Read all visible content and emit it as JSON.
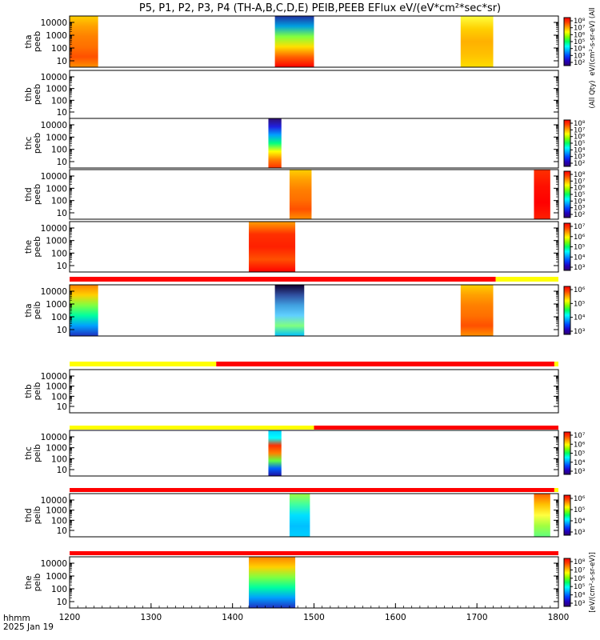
{
  "chart_data": {
    "type": "heatmap",
    "title": "P5, P1, P2, P3, P4 (TH-A,B,C,D,E) PEIB,PEEB EFlux eV/(eV*cm²*sec*sr)",
    "x_caption": "hhmm",
    "date": "2025 Jan 19",
    "xlim": [
      1200,
      1800
    ],
    "x_ticks": [
      "1200",
      "1300",
      "1400",
      "1500",
      "1600",
      "1700",
      "1800"
    ],
    "y_scale": "log",
    "colormap": "rainbow (purple-blue-cyan-green-yellow-red)",
    "colors": {
      "red": "#ff0000",
      "yellow": "#ffff00",
      "background": "#ffffff"
    },
    "panels": [
      {
        "name": "tha peeb",
        "ylabel": [
          "tha",
          "peeb"
        ],
        "y_ticks": [
          "10000",
          "1000",
          "100",
          "10"
        ],
        "cbar_ticks": [
          "10⁸",
          "10⁷",
          "10⁶",
          "10⁵",
          "10⁴",
          "10³",
          "10²"
        ],
        "cbar_label": "eV/(cm²-s-sr-eV) (All",
        "blocks": [
          {
            "t0": 1200,
            "t1": 1235,
            "style": "warm"
          },
          {
            "t0": 1452,
            "t1": 1500,
            "style": "mixed-blue"
          },
          {
            "t0": 1680,
            "t1": 1720,
            "style": "yellow-top"
          }
        ]
      },
      {
        "name": "thb peeb",
        "ylabel": [
          "thb",
          "peeb"
        ],
        "y_ticks": [
          "10000",
          "1000",
          "100",
          "10"
        ],
        "cbar_ticks": [],
        "cbar_label": "(All Qty)",
        "blocks": []
      },
      {
        "name": "thc peeb",
        "ylabel": [
          "thc",
          "peeb"
        ],
        "y_ticks": [
          "10000",
          "1000",
          "100",
          "10"
        ],
        "cbar_ticks": [
          "10⁸",
          "10⁷",
          "10⁶",
          "10⁵",
          "10⁴",
          "10³",
          "10²"
        ],
        "cbar_label": "",
        "blocks": [
          {
            "t0": 1444,
            "t1": 1460,
            "style": "purple-top"
          }
        ]
      },
      {
        "name": "thd peeb",
        "ylabel": [
          "thd",
          "peeb"
        ],
        "y_ticks": [
          "10000",
          "1000",
          "100",
          "10"
        ],
        "cbar_ticks": [
          "10⁸",
          "10⁷",
          "10⁶",
          "10⁵",
          "10⁴",
          "10³",
          "10²"
        ],
        "cbar_label": "",
        "blocks": [
          {
            "t0": 1470,
            "t1": 1497,
            "style": "warm"
          },
          {
            "t0": 1770,
            "t1": 1790,
            "style": "red"
          }
        ]
      },
      {
        "name": "the peeb",
        "ylabel": [
          "the",
          "peeb"
        ],
        "y_ticks": [
          "10000",
          "1000",
          "100",
          "10"
        ],
        "cbar_ticks": [
          "10⁷",
          "10⁶",
          "10⁵",
          "10⁴",
          "10³"
        ],
        "cbar_label": "",
        "blocks": [
          {
            "t0": 1420,
            "t1": 1477,
            "style": "warm-red"
          }
        ]
      },
      {
        "name": "tha peib",
        "ylabel": [
          "tha",
          "peib"
        ],
        "y_ticks": [
          "10000",
          "1000",
          "100",
          "10"
        ],
        "cbar_ticks": [
          "10⁶",
          "10⁵",
          "10⁴",
          "10³"
        ],
        "cbar_label": "",
        "blocks": [
          {
            "t0": 1200,
            "t1": 1235,
            "style": "cool-mix"
          },
          {
            "t0": 1452,
            "t1": 1488,
            "style": "dark-mix"
          },
          {
            "t0": 1680,
            "t1": 1720,
            "style": "warm"
          }
        ]
      },
      {
        "name": "thb peib",
        "ylabel": [
          "thb",
          "peib"
        ],
        "y_ticks": [
          "10000",
          "1000",
          "100",
          "10"
        ],
        "cbar_ticks": [],
        "cbar_label": "",
        "blocks": []
      },
      {
        "name": "thc peib",
        "ylabel": [
          "thc",
          "peib"
        ],
        "y_ticks": [
          "10000",
          "1000",
          "100",
          "10"
        ],
        "cbar_ticks": [
          "10⁷",
          "10⁶",
          "10⁵",
          "10⁴",
          "10³"
        ],
        "cbar_label": "",
        "blocks": [
          {
            "t0": 1444,
            "t1": 1460,
            "style": "cool-top-red"
          }
        ]
      },
      {
        "name": "thd peib",
        "ylabel": [
          "thd",
          "peib"
        ],
        "y_ticks": [
          "10000",
          "1000",
          "100",
          "10"
        ],
        "cbar_ticks": [
          "10⁶",
          "10⁵",
          "10⁴",
          "10³"
        ],
        "cbar_label": "",
        "blocks": [
          {
            "t0": 1470,
            "t1": 1495,
            "style": "cyan"
          },
          {
            "t0": 1770,
            "t1": 1790,
            "style": "warm-green"
          }
        ]
      },
      {
        "name": "the peib",
        "ylabel": [
          "the",
          "peib"
        ],
        "y_ticks": [
          "10000",
          "1000",
          "100",
          "10"
        ],
        "cbar_ticks": [
          "10⁸",
          "10⁷",
          "10⁶",
          "10⁵",
          "10⁴",
          "10³"
        ],
        "cbar_label": "[eV/(cm²-s-sr-eV)]",
        "blocks": [
          {
            "t0": 1420,
            "t1": 1477,
            "style": "cool-mix"
          }
        ]
      }
    ],
    "flag_bars": [
      {
        "after_panel": 4,
        "segments": [
          {
            "t0": 1200,
            "t1": 1723,
            "color": "red"
          },
          {
            "t0": 1723,
            "t1": 1800,
            "color": "yellow"
          }
        ]
      },
      {
        "after_panel": 5,
        "segments": [
          {
            "t0": 1200,
            "t1": 1380,
            "color": "yellow"
          },
          {
            "t0": 1380,
            "t1": 1795,
            "color": "red"
          },
          {
            "t0": 1795,
            "t1": 1800,
            "color": "yellow"
          }
        ]
      },
      {
        "after_panel": 6,
        "segments": [
          {
            "t0": 1200,
            "t1": 1500,
            "color": "yellow"
          },
          {
            "t0": 1500,
            "t1": 1800,
            "color": "red"
          }
        ]
      },
      {
        "after_panel": 7,
        "segments": [
          {
            "t0": 1200,
            "t1": 1795,
            "color": "red"
          },
          {
            "t0": 1795,
            "t1": 1800,
            "color": "yellow"
          }
        ]
      },
      {
        "after_panel": 8,
        "segments": [
          {
            "t0": 1200,
            "t1": 1800,
            "color": "red"
          }
        ]
      }
    ]
  }
}
